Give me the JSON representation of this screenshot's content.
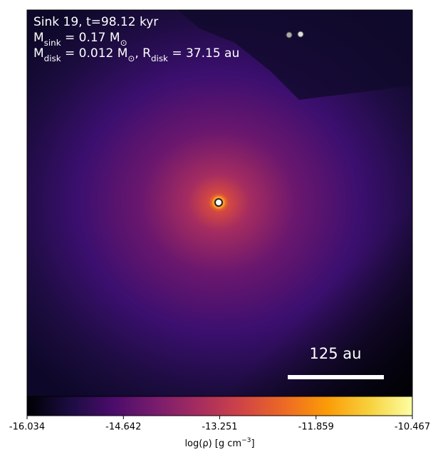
{
  "chart_data": {
    "type": "image",
    "annotations": [
      [
        {
          "text": "Sink 19, t=98.12 kyr"
        }
      ],
      [
        {
          "text": "M"
        },
        {
          "sub": "sink"
        },
        {
          "text": " = 0.17 M"
        },
        {
          "sub": "⊙"
        }
      ],
      [
        {
          "text": "M"
        },
        {
          "sub": "disk"
        },
        {
          "text": " = 0.012 M"
        },
        {
          "sub": "⊙"
        },
        {
          "text": ", R"
        },
        {
          "sub": "disk"
        },
        {
          "text": " = 37.15 au"
        }
      ]
    ],
    "scale_bar_label": "125 au",
    "colormap": "inferno",
    "colorbar": {
      "lim": [
        -16.034,
        -10.467
      ],
      "ticks": [
        -16.034,
        -14.642,
        -13.251,
        -11.859,
        -10.467
      ],
      "label": [
        {
          "text": "log(ρ) [g cm"
        },
        {
          "sup": "−3"
        },
        {
          "text": "]"
        }
      ]
    }
  }
}
